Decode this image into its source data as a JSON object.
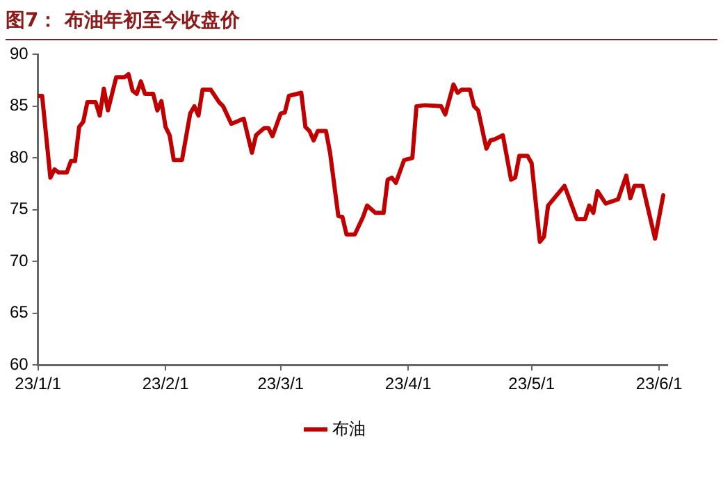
{
  "chart_data": {
    "type": "line",
    "title": "图7： 布油年初至今收盘价",
    "x": [
      "--01-01",
      "--01-02",
      "--01-04",
      "--01-05",
      "--01-06",
      "--01-08",
      "--01-09",
      "--01-10",
      "--01-11",
      "--01-12",
      "--01-13",
      "--01-15",
      "--01-16",
      "--01-17",
      "--01-18",
      "--01-20",
      "--01-22",
      "--01-23",
      "--01-24",
      "--01-25",
      "--01-26",
      "--01-27",
      "--01-29",
      "--01-30",
      "--01-31",
      "--02-01",
      "--02-02",
      "--02-03",
      "--02-05",
      "--02-07",
      "--02-08",
      "--02-09",
      "--02-10",
      "--02-12",
      "--02-14",
      "--02-15",
      "--02-17",
      "--02-20",
      "--02-22",
      "--02-23",
      "--02-25",
      "--02-26",
      "--02-27",
      "--03-01",
      "--03-02",
      "--03-03",
      "--03-06",
      "--03-07",
      "--03-08",
      "--03-09",
      "--03-10",
      "--03-12",
      "--03-13",
      "--03-15",
      "--03-16",
      "--03-17",
      "--03-19",
      "--03-21",
      "--03-22",
      "--03-24",
      "--03-26",
      "--03-27",
      "--03-28",
      "--03-29",
      "--03-31",
      "--04-02",
      "--04-03",
      "--04-05",
      "--04-09",
      "--04-10",
      "--04-12",
      "--04-13",
      "--04-14",
      "--04-16",
      "--04-17",
      "--04-18",
      "--04-20",
      "--04-21",
      "--04-22",
      "--04-24",
      "--04-26",
      "--04-27",
      "--04-28",
      "--04-30",
      "--05-01",
      "--05-03",
      "--05-04",
      "--05-05",
      "--05-09",
      "--05-12",
      "--05-14",
      "--05-15",
      "--05-16",
      "--05-17",
      "--05-19",
      "--05-22",
      "--05-24",
      "--05-25",
      "--05-26",
      "--05-28",
      "--05-31",
      "--06-02"
    ],
    "series": [
      {
        "name": "布油",
        "color": "#c00000",
        "values": [
          86.0,
          86.0,
          78.1,
          78.9,
          78.6,
          78.6,
          79.7,
          79.7,
          83.0,
          83.5,
          85.4,
          85.4,
          84.1,
          86.7,
          84.6,
          87.8,
          87.8,
          88.1,
          86.5,
          86.2,
          87.4,
          86.2,
          86.2,
          84.6,
          85.5,
          83.0,
          82.2,
          79.8,
          79.8,
          84.3,
          85.0,
          84.1,
          86.6,
          86.6,
          85.4,
          85.0,
          83.3,
          83.8,
          80.5,
          82.2,
          82.9,
          82.9,
          82.1,
          84.3,
          84.4,
          86.0,
          86.3,
          83.0,
          82.6,
          81.7,
          82.6,
          82.6,
          80.5,
          74.4,
          74.3,
          72.6,
          72.6,
          74.3,
          75.4,
          74.7,
          74.7,
          77.9,
          78.1,
          77.6,
          79.8,
          80.0,
          85.0,
          85.1,
          85.0,
          84.2,
          87.1,
          86.3,
          86.6,
          86.6,
          85.0,
          84.6,
          80.9,
          81.7,
          81.8,
          82.2,
          77.9,
          78.1,
          80.2,
          80.2,
          79.5,
          71.9,
          72.4,
          75.4,
          77.3,
          74.1,
          74.1,
          75.4,
          74.7,
          76.8,
          75.6,
          76.0,
          78.3,
          76.1,
          77.3,
          77.3,
          72.2,
          76.4
        ]
      }
    ],
    "xlim": [
      "--01-01",
      "--06-03"
    ],
    "xticks": [
      {
        "value": "--01-01",
        "label": "23/1/1"
      },
      {
        "value": "--02-01",
        "label": "23/2/1"
      },
      {
        "value": "--03-01",
        "label": "23/3/1"
      },
      {
        "value": "--04-01",
        "label": "23/4/1"
      },
      {
        "value": "--05-01",
        "label": "23/5/1"
      },
      {
        "value": "--06-01",
        "label": "23/6/1"
      }
    ],
    "ylim": [
      60,
      90
    ],
    "yticks": [
      60,
      65,
      70,
      75,
      80,
      85,
      90
    ],
    "grid": false,
    "legend": "bottom",
    "marker": "none",
    "line_style": "solid"
  }
}
